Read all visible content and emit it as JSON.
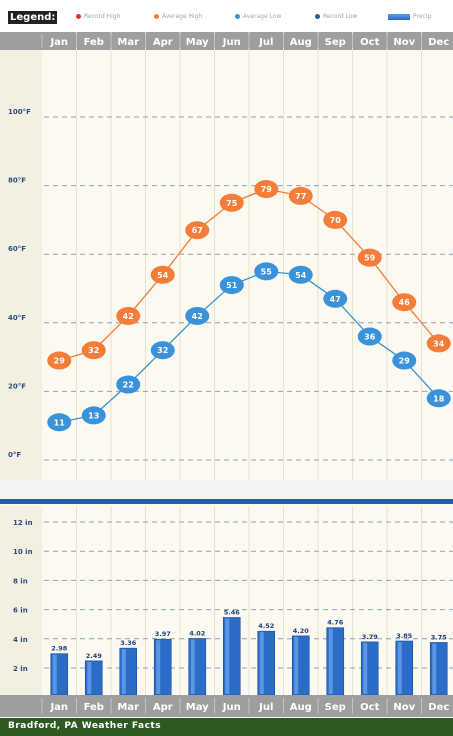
{
  "legend": {
    "title": "Legend:",
    "items": [
      {
        "label": "Record High",
        "color": "#d9362c",
        "icon": "dot-icon"
      },
      {
        "label": "Average High",
        "color": "#f47d3a",
        "icon": "dot-icon"
      },
      {
        "label": "Average Low",
        "color": "#3a93d8",
        "icon": "dot-icon"
      },
      {
        "label": "Record Low",
        "color": "#2d5c88",
        "icon": "dot-icon"
      },
      {
        "label": "Precip",
        "color": "#2a6cc8",
        "icon": "bar-swatch-icon"
      }
    ]
  },
  "chart_data": [
    {
      "type": "line",
      "categories": [
        "Jan",
        "Feb",
        "Mar",
        "Apr",
        "May",
        "Jun",
        "Jul",
        "Aug",
        "Sep",
        "Oct",
        "Nov",
        "Dec"
      ],
      "series": [
        {
          "name": "Average High",
          "values": [
            29,
            32,
            42,
            54,
            67,
            75,
            79,
            77,
            70,
            59,
            46,
            34
          ],
          "color": "#f47d3a"
        },
        {
          "name": "Average Low",
          "values": [
            11,
            13,
            22,
            32,
            42,
            51,
            55,
            54,
            47,
            36,
            29,
            18
          ],
          "color": "#3a93d8"
        }
      ],
      "yticks": [
        "0°F",
        "20°F",
        "40°F",
        "60°F",
        "80°F",
        "100°F"
      ],
      "ylim": [
        0,
        100
      ],
      "grid": true,
      "legend": "top"
    },
    {
      "type": "bar",
      "categories": [
        "Jan",
        "Feb",
        "Mar",
        "Apr",
        "May",
        "Jun",
        "Jul",
        "Aug",
        "Sep",
        "Oct",
        "Nov",
        "Dec"
      ],
      "series": [
        {
          "name": "Precip",
          "values": [
            2.98,
            2.49,
            3.36,
            3.97,
            4.02,
            5.46,
            4.52,
            4.2,
            4.76,
            3.79,
            3.85,
            3.75
          ],
          "labels": [
            "2.98",
            "2.49",
            "3.36",
            "3.97",
            "4.02",
            "5.46",
            "4.52",
            "4.20",
            "4.76",
            "3.79",
            "3.85",
            "3.75"
          ],
          "color": "#2a6cc8"
        }
      ],
      "yticks": [
        "2 in",
        "4 in",
        "6 in",
        "8 in",
        "10 in",
        "12 in"
      ],
      "ylim": [
        0,
        12
      ],
      "grid": true
    }
  ],
  "footer": {
    "title": "Bradford, PA Weather Facts"
  }
}
